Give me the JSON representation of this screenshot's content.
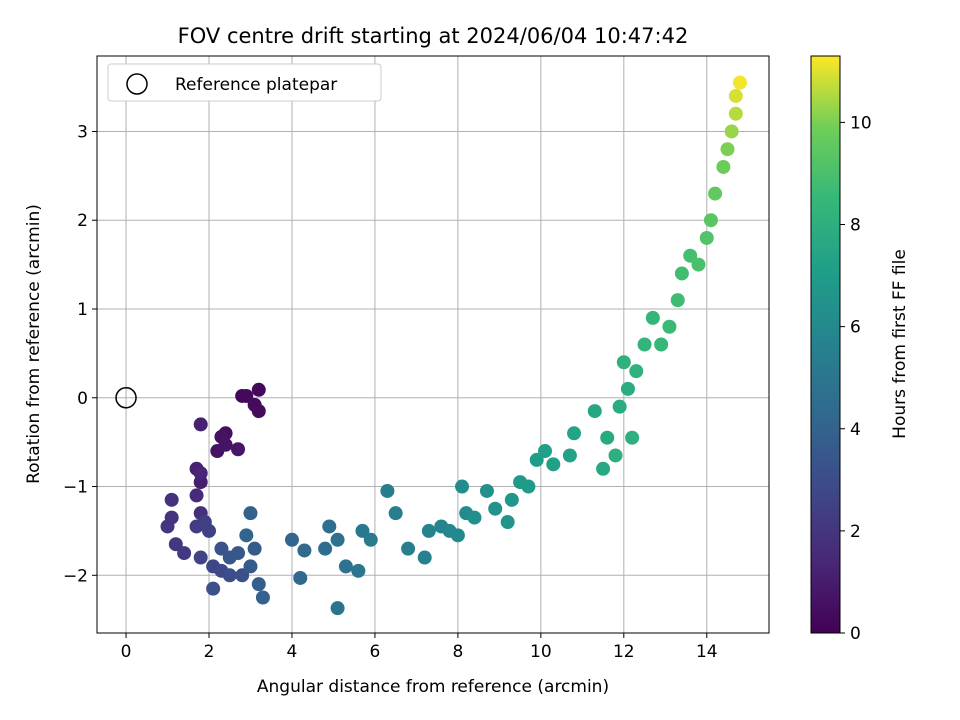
{
  "chart_data": {
    "type": "scatter",
    "title": "FOV centre drift starting at 2024/06/04 10:47:42",
    "xlabel": "Angular distance from reference (arcmin)",
    "ylabel": "Rotation from reference (arcmin)",
    "xlim": [
      -0.7,
      15.5
    ],
    "ylim": [
      -2.65,
      3.85
    ],
    "xticks": [
      0,
      2,
      4,
      6,
      8,
      10,
      12,
      14
    ],
    "yticks": [
      -2,
      -1,
      0,
      1,
      2,
      3
    ],
    "grid": true,
    "legend": {
      "position": "upper-left",
      "entries": [
        "Reference platepar"
      ]
    },
    "reference_point": {
      "x": 0,
      "y": 0,
      "label": "Reference platepar"
    },
    "colorbar": {
      "label": "Hours from first FF file",
      "colormap": "viridis",
      "range": [
        0,
        11.3
      ],
      "ticks": [
        0,
        2,
        4,
        6,
        8,
        10
      ]
    },
    "points": [
      [
        2.8,
        0.02,
        0.2
      ],
      [
        2.9,
        0.02,
        0.3
      ],
      [
        3.2,
        0.09,
        0.3
      ],
      [
        3.1,
        -0.08,
        0.4
      ],
      [
        3.2,
        -0.15,
        0.4
      ],
      [
        2.4,
        -0.4,
        0.5
      ],
      [
        2.3,
        -0.44,
        0.6
      ],
      [
        2.2,
        -0.6,
        0.6
      ],
      [
        2.4,
        -0.53,
        0.7
      ],
      [
        2.7,
        -0.58,
        0.8
      ],
      [
        1.8,
        -0.95,
        1.0
      ],
      [
        1.7,
        -0.8,
        1.1
      ],
      [
        1.8,
        -0.3,
        1.2
      ],
      [
        1.8,
        -0.85,
        1.3
      ],
      [
        1.7,
        -1.1,
        1.5
      ],
      [
        1.8,
        -1.3,
        1.7
      ],
      [
        1.1,
        -1.15,
        1.8
      ],
      [
        1.1,
        -1.35,
        1.9
      ],
      [
        1.0,
        -1.45,
        2.0
      ],
      [
        1.2,
        -1.65,
        2.1
      ],
      [
        1.4,
        -1.75,
        2.2
      ],
      [
        1.7,
        -1.45,
        2.3
      ],
      [
        1.9,
        -1.4,
        2.4
      ],
      [
        2.0,
        -1.5,
        2.5
      ],
      [
        1.8,
        -1.8,
        2.6
      ],
      [
        2.1,
        -1.9,
        2.7
      ],
      [
        2.3,
        -1.95,
        2.8
      ],
      [
        2.5,
        -2.0,
        3.0
      ],
      [
        2.8,
        -2.0,
        3.1
      ],
      [
        2.1,
        -2.15,
        3.2
      ],
      [
        2.3,
        -1.7,
        3.3
      ],
      [
        2.5,
        -1.8,
        3.4
      ],
      [
        2.7,
        -1.75,
        3.5
      ],
      [
        3.0,
        -1.9,
        3.6
      ],
      [
        3.1,
        -1.7,
        3.7
      ],
      [
        3.2,
        -2.1,
        3.8
      ],
      [
        3.3,
        -2.25,
        3.9
      ],
      [
        3.0,
        -1.3,
        4.0
      ],
      [
        2.9,
        -1.55,
        4.1
      ],
      [
        4.0,
        -1.6,
        4.2
      ],
      [
        4.2,
        -2.03,
        4.3
      ],
      [
        4.3,
        -1.72,
        4.4
      ],
      [
        4.8,
        -1.7,
        4.5
      ],
      [
        4.9,
        -1.45,
        4.6
      ],
      [
        5.1,
        -1.6,
        4.7
      ],
      [
        5.3,
        -1.9,
        4.8
      ],
      [
        5.1,
        -2.37,
        4.9
      ],
      [
        5.6,
        -1.95,
        5.0
      ],
      [
        5.7,
        -1.5,
        5.1
      ],
      [
        5.9,
        -1.6,
        5.2
      ],
      [
        6.3,
        -1.05,
        5.3
      ],
      [
        6.5,
        -1.3,
        5.4
      ],
      [
        6.8,
        -1.7,
        5.5
      ],
      [
        7.2,
        -1.8,
        5.6
      ],
      [
        7.3,
        -1.5,
        5.7
      ],
      [
        7.6,
        -1.45,
        5.8
      ],
      [
        7.8,
        -1.5,
        5.9
      ],
      [
        8.0,
        -1.55,
        6.0
      ],
      [
        8.2,
        -1.3,
        6.1
      ],
      [
        8.1,
        -1.0,
        6.2
      ],
      [
        8.4,
        -1.35,
        6.3
      ],
      [
        8.7,
        -1.05,
        6.4
      ],
      [
        8.9,
        -1.25,
        6.5
      ],
      [
        9.2,
        -1.4,
        6.6
      ],
      [
        9.3,
        -1.15,
        6.7
      ],
      [
        9.5,
        -0.95,
        6.8
      ],
      [
        9.7,
        -1.0,
        6.9
      ],
      [
        9.9,
        -0.7,
        7.0
      ],
      [
        10.1,
        -0.6,
        7.1
      ],
      [
        10.3,
        -0.75,
        7.2
      ],
      [
        10.7,
        -0.65,
        7.3
      ],
      [
        10.8,
        -0.4,
        7.4
      ],
      [
        11.3,
        -0.15,
        7.5
      ],
      [
        11.5,
        -0.8,
        7.6
      ],
      [
        11.6,
        -0.45,
        7.7
      ],
      [
        11.9,
        -0.1,
        7.8
      ],
      [
        12.1,
        0.1,
        7.9
      ],
      [
        11.8,
        -0.65,
        8.0
      ],
      [
        12.2,
        -0.45,
        8.0
      ],
      [
        12.0,
        0.4,
        8.1
      ],
      [
        12.3,
        0.3,
        8.2
      ],
      [
        12.5,
        0.6,
        8.3
      ],
      [
        12.7,
        0.9,
        8.4
      ],
      [
        12.9,
        0.6,
        8.5
      ],
      [
        13.1,
        0.8,
        8.6
      ],
      [
        13.3,
        1.1,
        8.7
      ],
      [
        13.4,
        1.4,
        8.8
      ],
      [
        13.6,
        1.6,
        8.9
      ],
      [
        13.8,
        1.5,
        9.0
      ],
      [
        14.0,
        1.8,
        9.2
      ],
      [
        14.1,
        2.0,
        9.4
      ],
      [
        14.2,
        2.3,
        9.6
      ],
      [
        14.4,
        2.6,
        9.8
      ],
      [
        14.5,
        2.8,
        10.0
      ],
      [
        14.6,
        3.0,
        10.3
      ],
      [
        14.7,
        3.2,
        10.6
      ],
      [
        14.7,
        3.4,
        10.9
      ],
      [
        14.8,
        3.55,
        11.2
      ]
    ]
  }
}
